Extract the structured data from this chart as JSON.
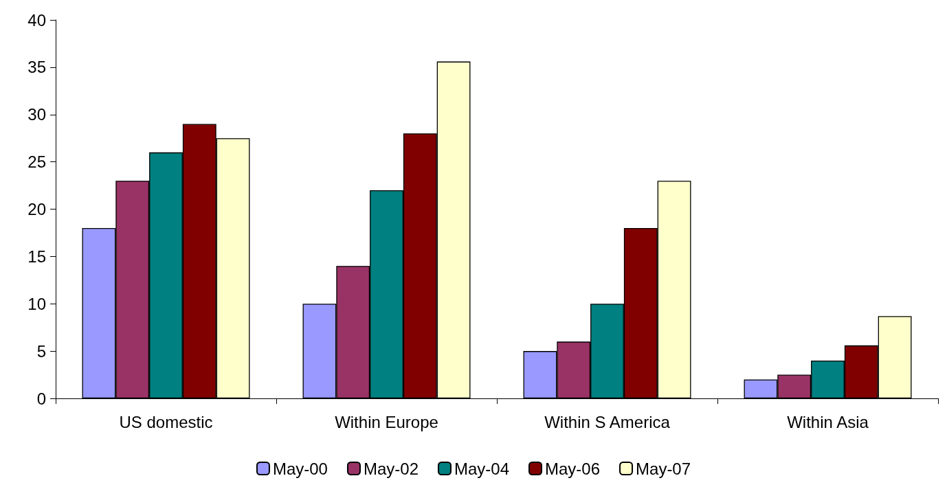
{
  "chart_data": {
    "type": "bar",
    "categories": [
      "US domestic",
      "Within Europe",
      "Within S America",
      "Within Asia"
    ],
    "series": [
      {
        "name": "May-00",
        "color": "#9999ff",
        "values": [
          18,
          10,
          5,
          2
        ]
      },
      {
        "name": "May-02",
        "color": "#993366",
        "values": [
          23,
          14,
          6,
          2.5
        ]
      },
      {
        "name": "May-04",
        "color": "#008080",
        "values": [
          26,
          22,
          10,
          4
        ]
      },
      {
        "name": "May-06",
        "color": "#800000",
        "values": [
          29,
          28,
          18,
          5.6
        ]
      },
      {
        "name": "May-07",
        "color": "#ffffcc",
        "values": [
          27.5,
          35.6,
          23,
          8.7
        ]
      }
    ],
    "ylim": [
      0,
      40
    ],
    "yticks": [
      0,
      5,
      10,
      15,
      20,
      25,
      30,
      35,
      40
    ],
    "grid": false,
    "legend": "bottom"
  }
}
